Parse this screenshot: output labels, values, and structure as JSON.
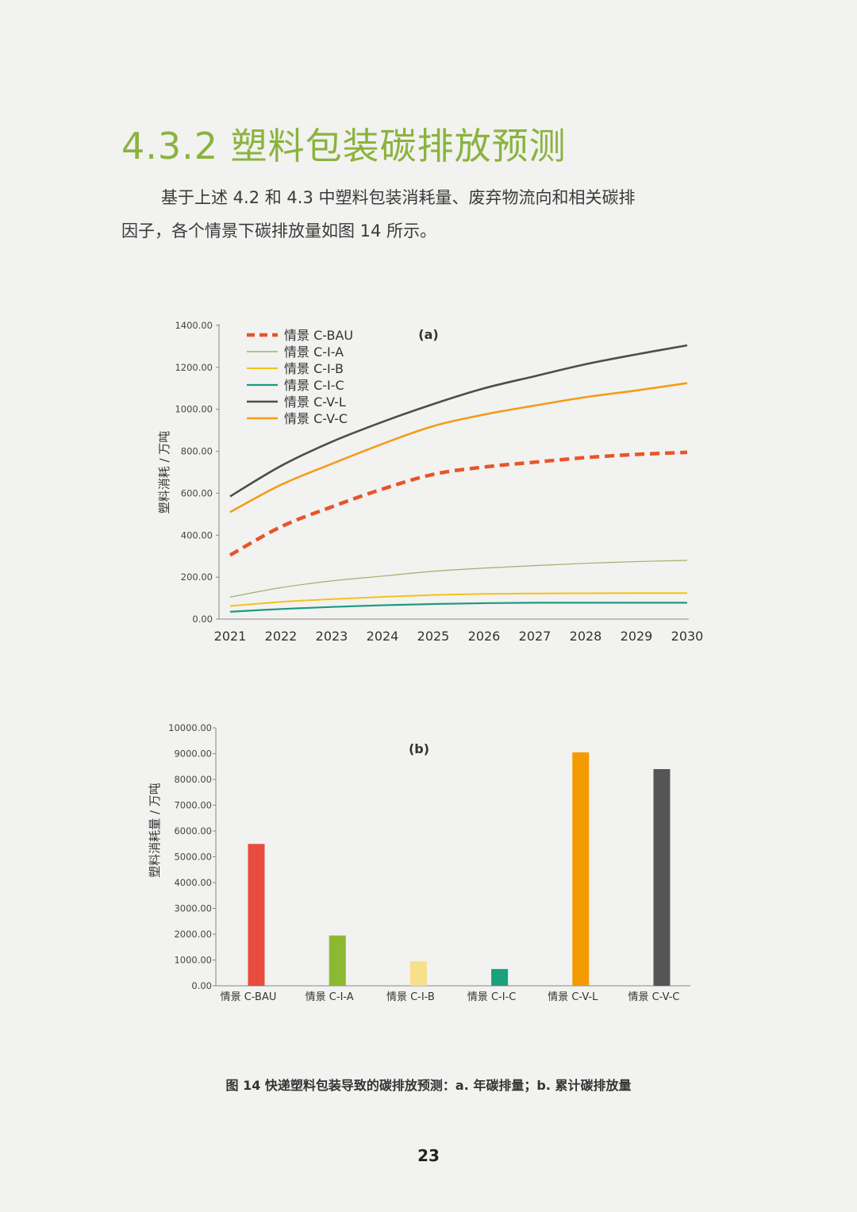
{
  "section": {
    "title": "4.3.2 塑料包装碳排放预测",
    "paragraph_line1": "基于上述 4.2 和 4.3 中塑料包装消耗量、废弃物流向和相关碳排",
    "paragraph_line2": "因子，各个情景下碳排放量如图 14 所示。"
  },
  "chart_data": [
    {
      "type": "line",
      "title": "(a)",
      "ylabel": "塑料消耗 / 万吨",
      "xlabel": "",
      "ylim": [
        0,
        1400
      ],
      "y_ticks": [
        "0.00",
        "200.00",
        "400.00",
        "600.00",
        "800.00",
        "1000.00",
        "1200.00",
        "1400.00"
      ],
      "x": [
        "2021",
        "2022",
        "2023",
        "2024",
        "2025",
        "2026",
        "2027",
        "2028",
        "2029",
        "2030"
      ],
      "legend_position": "top-left",
      "grid": false,
      "series": [
        {
          "name": "情景 C-BAU",
          "color": "#e8542a",
          "dashed": true,
          "width": 4.5,
          "values": [
            305,
            440,
            535,
            620,
            690,
            725,
            748,
            770,
            785,
            795
          ]
        },
        {
          "name": "情景 C-I-A",
          "color": "#9cb36b",
          "dashed": false,
          "width": 1.2,
          "values": [
            105,
            150,
            182,
            205,
            228,
            243,
            255,
            266,
            274,
            280
          ]
        },
        {
          "name": "情景 C-I-B",
          "color": "#f2c21a",
          "dashed": false,
          "width": 2,
          "values": [
            62,
            82,
            95,
            106,
            115,
            120,
            122,
            123,
            124,
            124
          ]
        },
        {
          "name": "情景 C-I-C",
          "color": "#1a9a80",
          "dashed": false,
          "width": 2.2,
          "values": [
            35,
            48,
            58,
            66,
            72,
            76,
            78,
            78,
            78,
            78
          ]
        },
        {
          "name": "情景 C-V-L",
          "color": "#4d4d4d",
          "dashed": false,
          "width": 2.6,
          "values": [
            585,
            730,
            845,
            940,
            1025,
            1100,
            1158,
            1215,
            1262,
            1305
          ]
        },
        {
          "name": "情景 C-V-C",
          "color": "#f39c1a",
          "dashed": false,
          "width": 2.6,
          "values": [
            510,
            640,
            740,
            835,
            920,
            975,
            1018,
            1058,
            1090,
            1125
          ]
        }
      ]
    },
    {
      "type": "bar",
      "title": "(b)",
      "ylabel": "塑料消耗量 / 万吨",
      "xlabel": "",
      "ylim": [
        0,
        10000
      ],
      "y_ticks": [
        "0.00",
        "1000.00",
        "2000.00",
        "3000.00",
        "4000.00",
        "5000.00",
        "6000.00",
        "7000.00",
        "8000.00",
        "9000.00",
        "10000.00"
      ],
      "categories": [
        "情景 C-BAU",
        "情景 C-I-A",
        "情景 C-I-B",
        "情景 C-I-C",
        "情景 C-V-L",
        "情景 C-V-C"
      ],
      "values": [
        5500,
        1950,
        950,
        650,
        9050,
        8400
      ],
      "colors": [
        "#e84c3d",
        "#8cb832",
        "#f8df8a",
        "#1aa07e",
        "#f39b00",
        "#555555"
      ],
      "grid": false
    }
  ],
  "caption": "图 14 快递塑料包装导致的碳排放预测：a. 年碳排量；b. 累计碳排放量",
  "page_number": "23"
}
